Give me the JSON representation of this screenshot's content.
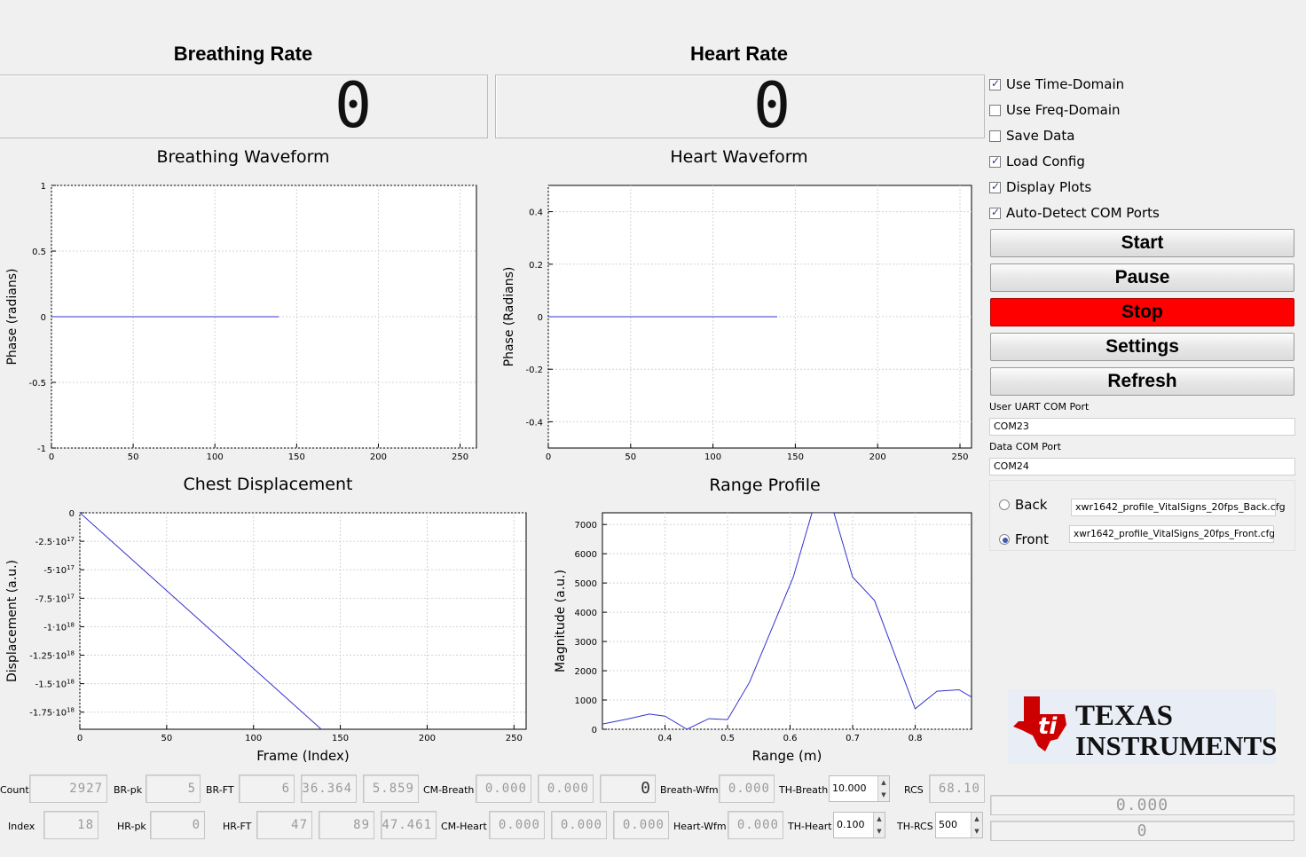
{
  "breathing": {
    "title": "Breathing Rate",
    "value": "0",
    "waveform_title": "Breathing Waveform"
  },
  "heart": {
    "title": "Heart Rate",
    "value": "0",
    "waveform_title": "Heart Waveform"
  },
  "options": [
    {
      "label": "Use Time-Domain",
      "checked": true
    },
    {
      "label": "Use Freq-Domain",
      "checked": false
    },
    {
      "label": "Save Data",
      "checked": false
    },
    {
      "label": "Load Config",
      "checked": true
    },
    {
      "label": "Display Plots",
      "checked": true
    },
    {
      "label": "Auto-Detect COM Ports",
      "checked": true
    }
  ],
  "buttons": {
    "start": "Start",
    "pause": "Pause",
    "stop": "Stop",
    "settings": "Settings",
    "refresh": "Refresh"
  },
  "ports": {
    "uart_label": "User UART COM Port",
    "uart_value": "COM23",
    "data_label": "Data COM Port",
    "data_value": "COM24"
  },
  "config": {
    "back_label": "Back",
    "back_file": "xwr1642_profile_VitalSigns_20fps_Back.cfg",
    "front_label": "Front",
    "front_file": "xwr1642_profile_VitalSigns_20fps_Front.cfg",
    "selected": "Front"
  },
  "logo": {
    "line1": "TEXAS",
    "line2": "INSTRUMENTS",
    "color": "#cc0000"
  },
  "stats": {
    "count_label": "Count",
    "count": "2927",
    "brpk_label": "BR-pk",
    "brpk": "5",
    "brft_label": "BR-FT",
    "brft": "6",
    "br_val1": "36.364",
    "br_val2": "5.859",
    "cmbreath_label": "CM-Breath",
    "cmbreath1": "0.000",
    "cmbreath2": "0.000",
    "cmbreath3": "0",
    "breathwfm_label": "Breath-Wfm",
    "breathwfm": "0.000",
    "thbreath_label": "TH-Breath",
    "thbreath": "10.000",
    "rcs_label": "RCS",
    "rcs": "68.10",
    "index_label": "Index",
    "index": "18",
    "hrpk_label": "HR-pk",
    "hrpk": "0",
    "hrft_label": "HR-FT",
    "hrft": "47",
    "hr_val1": "89",
    "hr_val2": "47.461",
    "cmheart_label": "CM-Heart",
    "cmheart1": "0.000",
    "cmheart2": "0.000",
    "cmheart3": "0.000",
    "heartwfm_label": "Heart-Wfm",
    "heartwfm": "0.000",
    "thheart_label": "TH-Heart",
    "thheart": "0.100",
    "thrcs_label": "TH-RCS",
    "thrcs": "500",
    "right1": "0.000",
    "right2": "0"
  },
  "chart_data": [
    {
      "type": "line",
      "title": "",
      "xlabel": "",
      "ylabel": "Phase (radians)",
      "xlim": [
        0,
        260
      ],
      "ylim": [
        -1,
        1
      ],
      "xticks": [
        0,
        50,
        100,
        150,
        200,
        250
      ],
      "yticks": [
        -1,
        -0.5,
        0,
        0.5,
        1
      ],
      "ytick_labels": [
        "-1",
        "-0.5",
        "0",
        "0.5",
        "1"
      ],
      "grid": true,
      "series": [
        {
          "x": [
            0,
            139
          ],
          "y": [
            0,
            0
          ],
          "color": "#3333cc"
        }
      ]
    },
    {
      "type": "line",
      "title": "",
      "xlabel": "",
      "ylabel": "Phase (Radians)",
      "xlim": [
        0,
        257
      ],
      "ylim": [
        -0.5,
        0.5
      ],
      "xticks": [
        0,
        50,
        100,
        150,
        200,
        250
      ],
      "yticks": [
        -0.4,
        -0.2,
        0,
        0.2,
        0.4
      ],
      "ytick_labels": [
        "-0.4",
        "-0.2",
        "0",
        "0.2",
        "0.4"
      ],
      "grid": true,
      "series": [
        {
          "x": [
            0,
            139
          ],
          "y": [
            0,
            0
          ],
          "color": "#3333cc"
        }
      ]
    },
    {
      "type": "line",
      "title": "Chest Displacement",
      "xlabel": "Frame (Index)",
      "ylabel": "Displacement (a.u.)",
      "xlim": [
        0,
        257
      ],
      "ylim": [
        -1.9e+18,
        0
      ],
      "xticks": [
        0,
        50,
        100,
        150,
        200,
        250
      ],
      "yticks": [
        0,
        -2.5e+17,
        -5e+17,
        -7.5e+17,
        -1e+18,
        -1.25e+18,
        -1.5e+18,
        -1.75e+18
      ],
      "ytick_labels": [
        {
          "mant": "0",
          "exp": ""
        },
        {
          "mant": "-2.5·10",
          "exp": "17"
        },
        {
          "mant": "-5·10",
          "exp": "17"
        },
        {
          "mant": "-7.5·10",
          "exp": "17"
        },
        {
          "mant": "-1·10",
          "exp": "18"
        },
        {
          "mant": "-1.25·10",
          "exp": "18"
        },
        {
          "mant": "-1.5·10",
          "exp": "18"
        },
        {
          "mant": "-1.75·10",
          "exp": "18"
        }
      ],
      "grid": true,
      "series": [
        {
          "x": [
            0,
            139
          ],
          "y": [
            0,
            -1.9e+18
          ],
          "color": "#3333cc"
        }
      ]
    },
    {
      "type": "line",
      "title": "Range Profile",
      "xlabel": "Range (m)",
      "ylabel": "Magnitude (a.u.)",
      "xlim": [
        0.3,
        0.89
      ],
      "ylim": [
        0,
        7400
      ],
      "xticks": [
        0.4,
        0.5,
        0.6,
        0.7,
        0.8
      ],
      "yticks": [
        0,
        1000,
        2000,
        3000,
        4000,
        5000,
        6000,
        7000
      ],
      "ytick_labels": [
        "0",
        "1000",
        "2000",
        "3000",
        "4000",
        "5000",
        "6000",
        "7000"
      ],
      "grid": true,
      "series": [
        {
          "x": [
            0.3,
            0.34,
            0.375,
            0.4,
            0.435,
            0.47,
            0.5,
            0.535,
            0.57,
            0.605,
            0.635,
            0.65,
            0.67,
            0.7,
            0.735,
            0.77,
            0.8,
            0.835,
            0.87,
            0.89
          ],
          "y": [
            180,
            350,
            520,
            450,
            0,
            360,
            330,
            1600,
            3400,
            5200,
            7400,
            7400,
            7400,
            5200,
            4400,
            2400,
            700,
            1300,
            1350,
            1100
          ],
          "color": "#3333cc"
        }
      ]
    }
  ]
}
